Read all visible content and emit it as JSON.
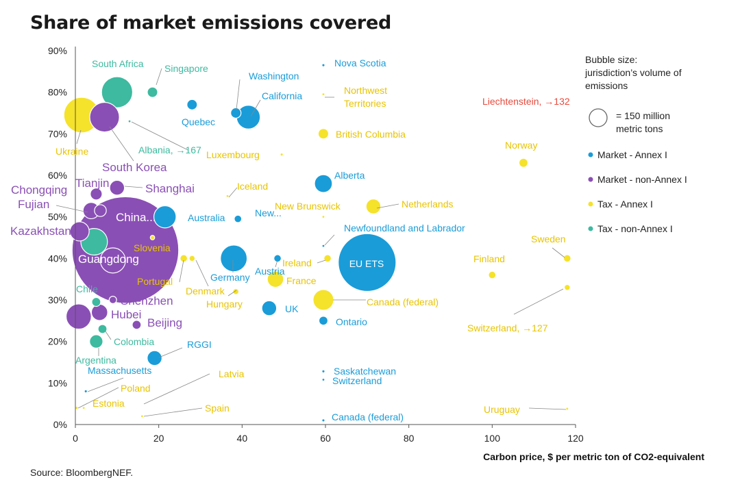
{
  "title": "Share of market emissions covered",
  "source": "Source: BloombergNEF.",
  "chart_data": {
    "type": "scatter",
    "subtype": "bubble",
    "title": "Share of market emissions covered",
    "xlabel": "Carbon price, $ per metric ton of CO2-equivalent",
    "ylabel": "",
    "xlim": [
      0,
      120
    ],
    "ylim": [
      0,
      90
    ],
    "x_ticks": [
      0,
      20,
      40,
      60,
      80,
      100,
      120
    ],
    "y_ticks": [
      0,
      10,
      20,
      30,
      40,
      50,
      60,
      70,
      80,
      90
    ],
    "x_tick_labels": [
      "0",
      "20",
      "40",
      "60",
      "80",
      "100",
      "120"
    ],
    "y_tick_labels": [
      "0%",
      "10%",
      "20%",
      "30%",
      "40%",
      "50%",
      "60%",
      "70%",
      "80%",
      "90%"
    ],
    "grid": false,
    "legend": {
      "title": "Bubble size:\njurisdiction’s volume of\nemissions",
      "size_ref_label": "= 150 million\nmetric tons",
      "placement": "right",
      "items": [
        {
          "key": "market_annex1",
          "label": "Market - Annex I"
        },
        {
          "key": "market_nonannex1",
          "label": "Market - non-Annex I"
        },
        {
          "key": "tax_annex1",
          "label": "Tax - Annex I"
        },
        {
          "key": "tax_nonannex1",
          "label": "Tax - non-Annex I"
        }
      ]
    },
    "colors": {
      "market_annex1": "#1a9cd8",
      "market_nonannex1": "#8a4fb5",
      "tax_annex1": "#f5e22b",
      "tax_nonannex1": "#3dba9f",
      "highlight": "#e84a3c"
    },
    "points": [
      {
        "name": "Nova Scotia",
        "x": 59.5,
        "y": 86.5,
        "s": 2,
        "c": "market_annex1",
        "label": "Nova Scotia"
      },
      {
        "name": "Washington",
        "x": 38.5,
        "y": 75,
        "s": 7,
        "c": "market_annex1",
        "label": "Washington"
      },
      {
        "name": "California",
        "x": 41.5,
        "y": 74,
        "s": 16,
        "c": "market_annex1",
        "label": "California"
      },
      {
        "name": "Quebec",
        "x": 28,
        "y": 77,
        "s": 7,
        "c": "market_annex1",
        "label": "Quebec"
      },
      {
        "name": "Alberta",
        "x": 59.5,
        "y": 58,
        "s": 12,
        "c": "market_annex1",
        "label": "Alberta"
      },
      {
        "name": "New...",
        "x": 39,
        "y": 49.5,
        "s": 5,
        "c": "market_annex1",
        "label": "New..."
      },
      {
        "name": "Newfoundland and Labrador",
        "x": 59.5,
        "y": 43,
        "s": 1.5,
        "c": "market_annex1",
        "label": "Newfoundland and Labrador"
      },
      {
        "name": "Australia",
        "x": 21.5,
        "y": 50,
        "s": 15,
        "c": "market_annex1",
        "label": "Australia"
      },
      {
        "name": "Germany",
        "x": 38,
        "y": 40,
        "s": 18,
        "c": "market_annex1",
        "label": "Germany"
      },
      {
        "name": "Austria",
        "x": 48.5,
        "y": 40,
        "s": 5,
        "c": "market_annex1",
        "label": "Austria"
      },
      {
        "name": "EU ETS",
        "x": 70,
        "y": 39,
        "s": 39,
        "c": "market_annex1",
        "label": "EU ETS"
      },
      {
        "name": "UK",
        "x": 46.5,
        "y": 28,
        "s": 10,
        "c": "market_annex1",
        "label": "UK"
      },
      {
        "name": "Ontario",
        "x": 59.5,
        "y": 25,
        "s": 6,
        "c": "market_annex1",
        "label": "Ontario"
      },
      {
        "name": "RGGI",
        "x": 19,
        "y": 16,
        "s": 10,
        "c": "market_annex1",
        "label": "RGGI"
      },
      {
        "name": "Massachusetts",
        "x": 2.5,
        "y": 8,
        "s": 2,
        "c": "market_annex1",
        "label": "Massachusetts"
      },
      {
        "name": "Saskatchewan",
        "x": 59.5,
        "y": 12.8,
        "s": 2,
        "c": "market_annex1",
        "label": "Saskatchewan"
      },
      {
        "name": "Switzerland (market)",
        "x": 59.5,
        "y": 10.8,
        "s": 1.5,
        "c": "market_annex1",
        "label": "Switzerland"
      },
      {
        "name": "Canada (federal) (market)",
        "x": 59.5,
        "y": 1,
        "s": 2,
        "c": "market_annex1",
        "label": "Canada (federal)"
      },
      {
        "name": "South Korea",
        "x": 7,
        "y": 74,
        "s": 20,
        "c": "market_nonannex1",
        "label": "South Korea"
      },
      {
        "name": "Shanghai",
        "x": 10,
        "y": 57,
        "s": 10,
        "c": "market_nonannex1",
        "label": "Shanghai"
      },
      {
        "name": "Tianjin",
        "x": 5,
        "y": 55.5,
        "s": 8,
        "c": "market_nonannex1",
        "label": "Tianjin"
      },
      {
        "name": "Chongqing",
        "x": 3.8,
        "y": 51.5,
        "s": 11,
        "c": "market_nonannex1",
        "label": "Chongqing"
      },
      {
        "name": "Fujian",
        "x": 6,
        "y": 51.5,
        "s": 8,
        "c": "market_nonannex1",
        "label": "Fujian"
      },
      {
        "name": "China...",
        "x": 12,
        "y": 42,
        "s": 72,
        "c": "market_nonannex1",
        "label": "China..."
      },
      {
        "name": "Kazakhstan",
        "x": 1,
        "y": 46.5,
        "s": 13,
        "c": "market_nonannex1",
        "label": "Kazakhstan"
      },
      {
        "name": "Guangdong",
        "x": 9,
        "y": 39.5,
        "s": 17,
        "c": "market_nonannex1",
        "label": "Guangdong"
      },
      {
        "name": "Shenzhen",
        "x": 9,
        "y": 30,
        "s": 5,
        "c": "market_nonannex1",
        "label": "Shenzhen"
      },
      {
        "name": "Hubei",
        "x": 5.8,
        "y": 27,
        "s": 11,
        "c": "market_nonannex1",
        "label": "Hubei"
      },
      {
        "name": "Beijing",
        "x": 14.7,
        "y": 24,
        "s": 6,
        "c": "market_nonannex1",
        "label": "Beijing"
      },
      {
        "name": "Hubei-left",
        "x": 0.8,
        "y": 26,
        "s": 17,
        "c": "market_nonannex1",
        "label": ""
      },
      {
        "name": "Ukraine",
        "x": 1.5,
        "y": 74.5,
        "s": 24,
        "c": "tax_annex1",
        "label": "Ukraine"
      },
      {
        "name": "Northwest Territories",
        "x": 59.5,
        "y": 79.5,
        "s": 1,
        "c": "tax_annex1",
        "label": "Northwest Territories"
      },
      {
        "name": "British Columbia",
        "x": 59.5,
        "y": 70,
        "s": 7,
        "c": "tax_annex1",
        "label": "British Columbia"
      },
      {
        "name": "Luxembourg",
        "x": 49.5,
        "y": 65,
        "s": 2,
        "c": "tax_annex1",
        "label": "Luxembourg"
      },
      {
        "name": "Iceland",
        "x": 36.5,
        "y": 55,
        "s": 1,
        "c": "tax_annex1",
        "label": "Iceland"
      },
      {
        "name": "New Brunswick",
        "x": 59.5,
        "y": 50,
        "s": 1,
        "c": "tax_annex1",
        "label": "New Brunswick"
      },
      {
        "name": "Netherlands",
        "x": 71.5,
        "y": 52.5,
        "s": 10,
        "c": "tax_annex1",
        "label": "Netherlands"
      },
      {
        "name": "Norway",
        "x": 107.5,
        "y": 63,
        "s": 6,
        "c": "tax_annex1",
        "label": "Norway"
      },
      {
        "name": "Liechtenstein",
        "x": 118,
        "y": 80,
        "s": 0,
        "c": "highlight",
        "label": "Liechtenstein, →132"
      },
      {
        "name": "Slovenia",
        "x": 18.5,
        "y": 45,
        "s": 3,
        "c": "tax_annex1",
        "label": "Slovenia"
      },
      {
        "name": "Portugal",
        "x": 26,
        "y": 40,
        "s": 5,
        "c": "tax_annex1",
        "label": "Portugal"
      },
      {
        "name": "Denmark",
        "x": 28,
        "y": 40,
        "s": 4,
        "c": "tax_annex1",
        "label": "Denmark"
      },
      {
        "name": "Hungary",
        "x": 38.5,
        "y": 32,
        "s": 4,
        "c": "tax_annex1",
        "label": "Hungary"
      },
      {
        "name": "France",
        "x": 48,
        "y": 35,
        "s": 11,
        "c": "tax_annex1",
        "label": "France"
      },
      {
        "name": "Ireland",
        "x": 60.5,
        "y": 40,
        "s": 5,
        "c": "tax_annex1",
        "label": "Ireland"
      },
      {
        "name": "Canada (federal)",
        "x": 59.5,
        "y": 30,
        "s": 14,
        "c": "tax_annex1",
        "label": "Canada (federal)"
      },
      {
        "name": "Finland",
        "x": 100,
        "y": 36,
        "s": 5,
        "c": "tax_annex1",
        "label": "Finland"
      },
      {
        "name": "Sweden",
        "x": 118,
        "y": 40,
        "s": 5,
        "c": "tax_annex1",
        "label": "Sweden"
      },
      {
        "name": "Switzerland",
        "x": 118,
        "y": 33,
        "s": 4,
        "c": "tax_annex1",
        "label": "Switzerland, →127"
      },
      {
        "name": "Uruguay",
        "x": 118,
        "y": 3.8,
        "s": 1,
        "c": "tax_annex1",
        "label": "Uruguay"
      },
      {
        "name": "Latvia",
        "x": 16,
        "y": 2,
        "s": 1,
        "c": "tax_annex1",
        "label": "Latvia"
      },
      {
        "name": "Poland",
        "x": 0.3,
        "y": 4,
        "s": 2,
        "c": "tax_annex1",
        "label": "Poland"
      },
      {
        "name": "Estonia",
        "x": 2,
        "y": 4,
        "s": 1,
        "c": "tax_annex1",
        "label": "Estonia"
      },
      {
        "name": "Spain",
        "x": 16,
        "y": 2,
        "s": 2,
        "c": "tax_annex1",
        "label": "Spain"
      },
      {
        "name": "South Africa",
        "x": 10,
        "y": 80,
        "s": 21,
        "c": "tax_nonannex1",
        "label": "South Africa"
      },
      {
        "name": "Singapore",
        "x": 18.5,
        "y": 80,
        "s": 7,
        "c": "tax_nonannex1",
        "label": "Singapore"
      },
      {
        "name": "Albania",
        "x": 13,
        "y": 73,
        "s": 1,
        "c": "tax_nonannex1",
        "label": "Albania, →167"
      },
      {
        "name": "Mexico",
        "x": 4.5,
        "y": 44,
        "s": 18,
        "c": "tax_nonannex1",
        "label": ""
      },
      {
        "name": "Chile",
        "x": 5,
        "y": 29.5,
        "s": 6,
        "c": "tax_nonannex1",
        "label": "Chile"
      },
      {
        "name": "Colombia",
        "x": 6.5,
        "y": 23,
        "s": 6,
        "c": "tax_nonannex1",
        "label": "Colombia"
      },
      {
        "name": "Argentina",
        "x": 5,
        "y": 20,
        "s": 9,
        "c": "tax_nonannex1",
        "label": "Argentina"
      }
    ]
  }
}
